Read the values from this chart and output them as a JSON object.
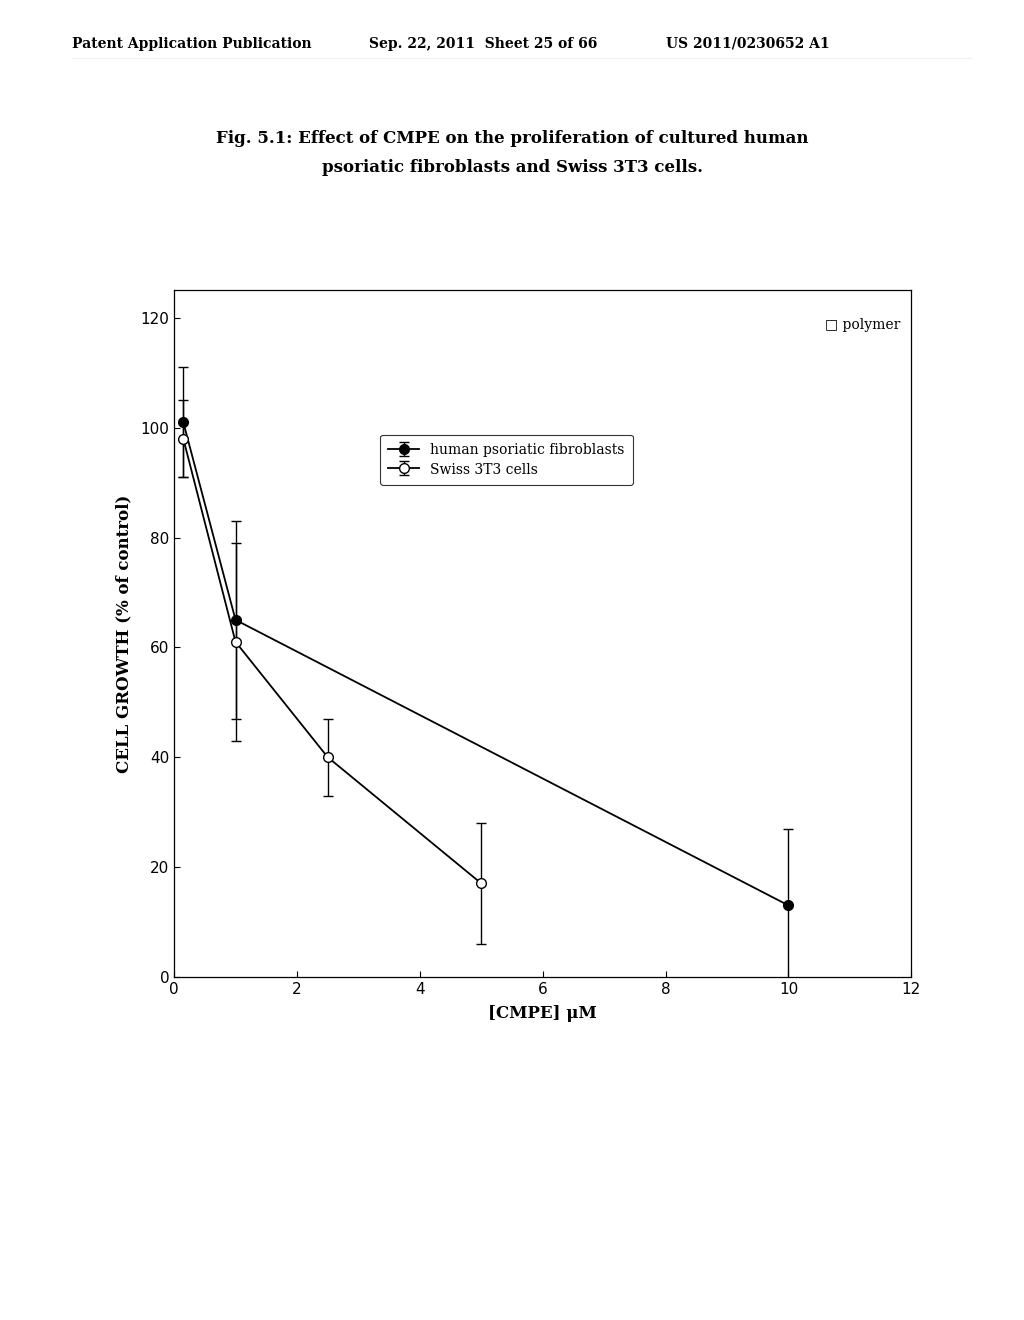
{
  "title_line1": "Fig. 5.1: Effect of CMPE on the proliferation of cultured human",
  "title_line2": "psoriatic fibroblasts and Swiss 3T3 cells.",
  "header_left": "Patent Application Publication",
  "header_mid": "Sep. 22, 2011  Sheet 25 of 66",
  "header_right": "US 2011/0230652 A1",
  "xlabel": "[CMPE] μM",
  "ylabel": "CELL GROWTH (% of control)",
  "xlim": [
    0,
    12
  ],
  "ylim": [
    0,
    125
  ],
  "xticks": [
    0,
    2,
    4,
    6,
    8,
    10,
    12
  ],
  "yticks": [
    0,
    20,
    40,
    60,
    80,
    100,
    120
  ],
  "series1": {
    "label": "human psoriatic fibroblasts",
    "x": [
      0.15,
      1,
      10
    ],
    "y": [
      101,
      65,
      13
    ],
    "yerr": [
      10,
      18,
      14
    ],
    "color": "black"
  },
  "series2": {
    "label": "Swiss 3T3 cells",
    "x": [
      0.15,
      1,
      2.5,
      5
    ],
    "y": [
      98,
      61,
      40,
      17
    ],
    "yerr": [
      7,
      18,
      7,
      11
    ],
    "color": "black"
  },
  "background_color": "#ffffff",
  "plot_bg": "#ffffff",
  "header_fontsize": 10,
  "title_fontsize": 12,
  "tick_fontsize": 11,
  "label_fontsize": 12
}
